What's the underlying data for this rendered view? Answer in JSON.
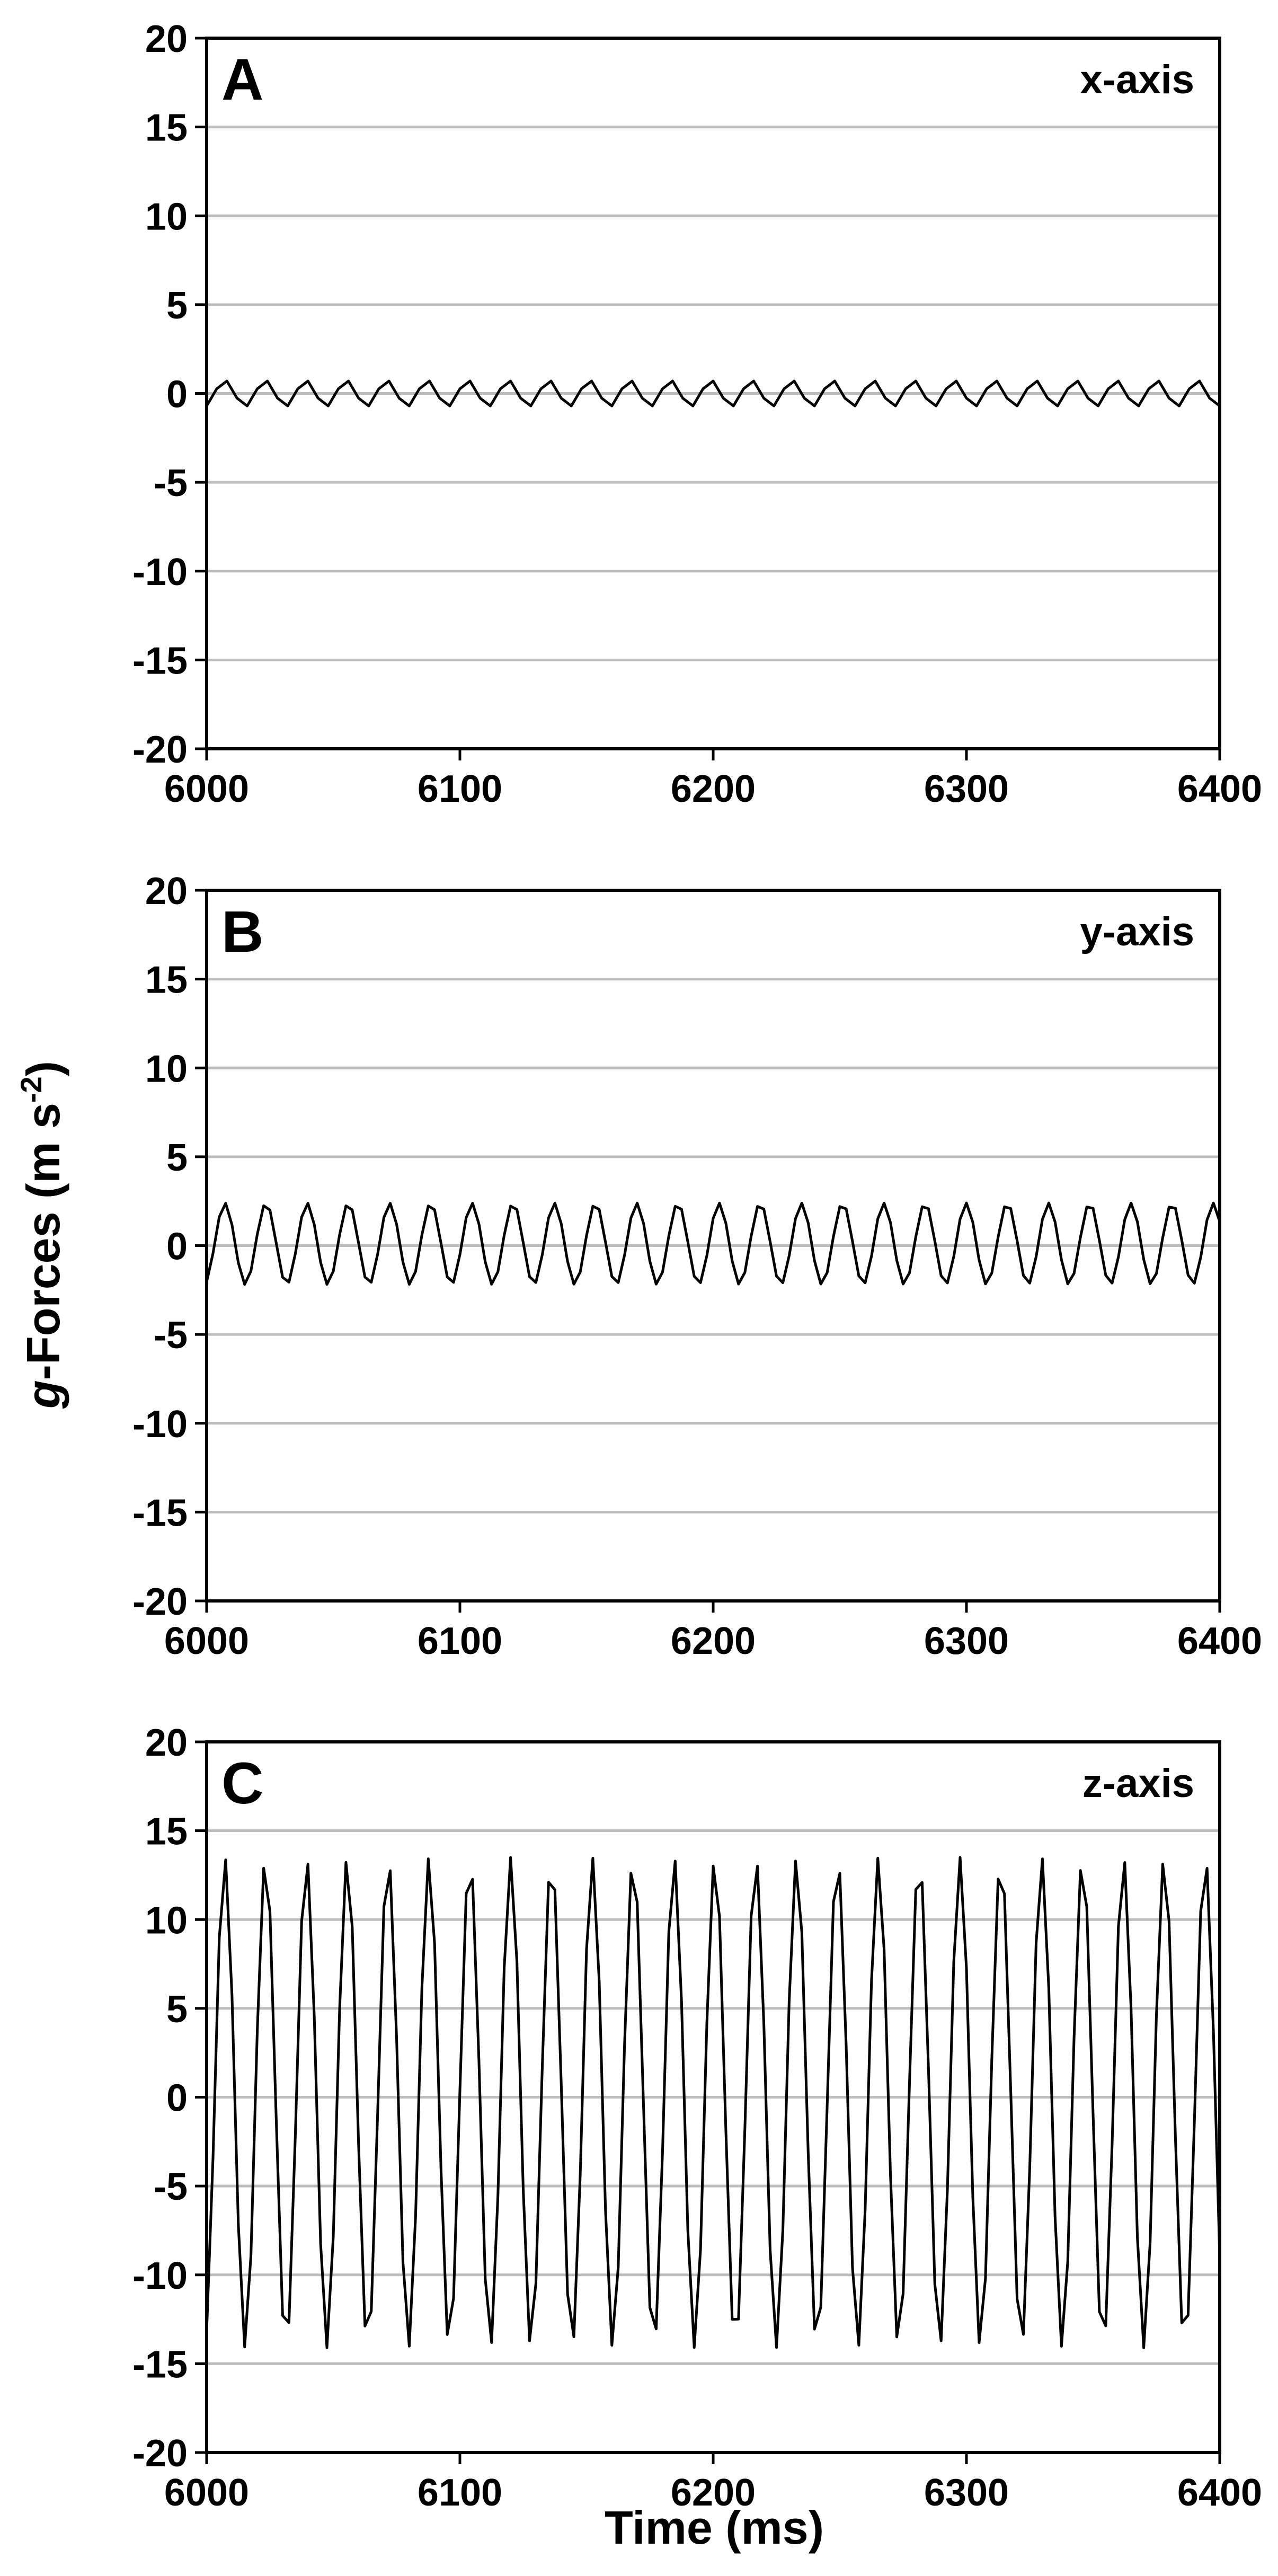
{
  "chart_data": [
    {
      "type": "line",
      "panel_label": "A",
      "series_label": "x-axis",
      "xlim": [
        6000,
        6400
      ],
      "ylim": [
        -20,
        20
      ],
      "xticks": [
        6000,
        6100,
        6200,
        6300,
        6400
      ],
      "yticks": [
        20,
        15,
        10,
        5,
        0,
        -5,
        -10,
        -15,
        -20
      ],
      "grid": "horizontal",
      "signal": {
        "frequency_hz": 62.5,
        "amplitude": 0.75,
        "offset": 0,
        "sample_interval_ms": 4
      },
      "series": [
        {
          "x_range": [
            6000,
            6400
          ],
          "peak": 0.8,
          "trough": -0.8
        }
      ]
    },
    {
      "type": "line",
      "panel_label": "B",
      "series_label": "y-axis",
      "xlim": [
        6000,
        6400
      ],
      "ylim": [
        -20,
        20
      ],
      "xticks": [
        6000,
        6100,
        6200,
        6300,
        6400
      ],
      "yticks": [
        20,
        15,
        10,
        5,
        0,
        -5,
        -10,
        -15,
        -20
      ],
      "grid": "horizontal",
      "signal": {
        "frequency_hz": 61.5,
        "amplitude": 2.3,
        "offset": 0.1,
        "sample_interval_ms": 2.5
      },
      "series": [
        {
          "x_range": [
            6000,
            6400
          ],
          "peak": 2.7,
          "trough": -2.3
        }
      ]
    },
    {
      "type": "line",
      "panel_label": "C",
      "series_label": "z-axis",
      "xlim": [
        6000,
        6400
      ],
      "ylim": [
        -20,
        20
      ],
      "xticks": [
        6000,
        6100,
        6200,
        6300,
        6400
      ],
      "yticks": [
        20,
        15,
        10,
        5,
        0,
        -5,
        -10,
        -15,
        -20
      ],
      "grid": "horizontal",
      "signal": {
        "frequency_hz": 62.0,
        "amplitude": 13.8,
        "offset": -0.3,
        "sample_interval_ms": 2.5
      },
      "series": [
        {
          "x_range": [
            6000,
            6400
          ],
          "peak": 13.8,
          "trough": -14.8
        }
      ]
    }
  ],
  "ylabel": {
    "italic": "g",
    "rest": "-Forces (m s",
    "sup": "-2",
    "close": ")"
  },
  "xlabel": "Time (ms)"
}
